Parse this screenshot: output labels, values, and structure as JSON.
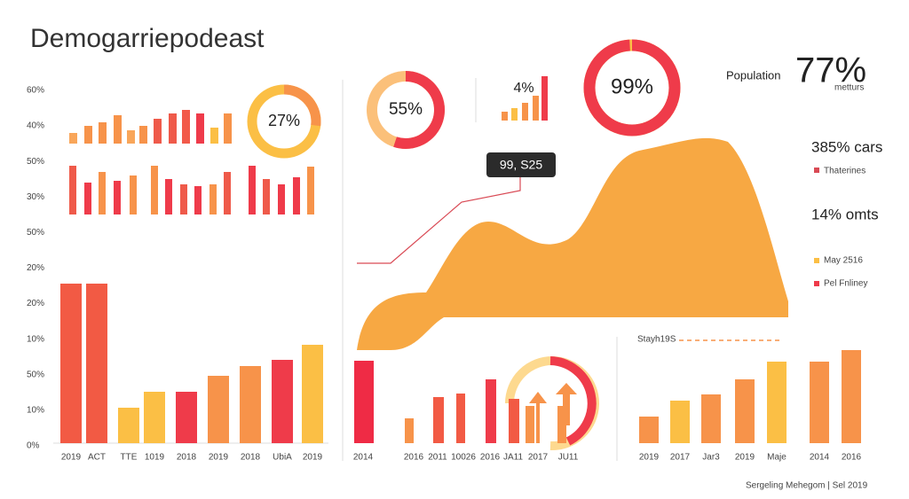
{
  "title": "Demogarriepodeast",
  "left_labels": [
    "60%",
    "40%",
    "50%",
    "30%",
    "50%",
    "20%",
    "20%",
    "10%",
    "50%",
    "10%",
    "0%"
  ],
  "tooltip": "99, S25",
  "population_label": "Population",
  "population_value": "77%",
  "population_sub": "metturs",
  "stat_cars": "385% cars",
  "legend_1": "Thaterines",
  "stat_omts": "14% omts",
  "legend_2": "May 2516",
  "legend_3": "Pel Fnliney",
  "marker_label": "Stayh19S",
  "footer": "Sergeling Mehegom  |  Sel 2019",
  "chart_data": [
    {
      "type": "bar",
      "values": [
        12,
        20,
        24,
        32,
        15,
        20,
        28,
        34,
        38,
        34,
        18,
        34
      ],
      "ylim": [
        0,
        200
      ],
      "colors": [
        "#f9a65a",
        "#f7934a",
        "#f7934a",
        "#f7934a",
        "#f9a65a",
        "#f7934a",
        "#ef5a4a",
        "#ef5a4a",
        "#f25a4a",
        "#ef3b4a",
        "#fbbf45",
        "#f7934a"
      ]
    },
    {
      "type": "bar",
      "values": [
        55,
        36,
        48,
        38,
        44,
        55,
        40,
        34,
        32,
        34,
        48,
        55,
        40,
        34,
        42,
        54
      ],
      "ylim": [
        0,
        200
      ],
      "colors": [
        "#ef5a4a",
        "#ef3b4a",
        "#f7934a",
        "#ef3b4a",
        "#f7934a",
        "#f7934a",
        "#ef3b4a",
        "#ef5a4a",
        "#ef3b4a",
        "#f7934a",
        "#ef5a4a",
        "#ef3b4a",
        "#ef5a4a",
        "#ef3b4a",
        "#ef3b4a",
        "#f7934a"
      ]
    },
    {
      "type": "bar",
      "categories": [
        "2019",
        "ACT",
        "TTE",
        "1019",
        "2018",
        "2019",
        "2018",
        "UbiA",
        "2019"
      ],
      "values": [
        180,
        180,
        40,
        58,
        58,
        76,
        87,
        94,
        111
      ],
      "ylim": [
        0,
        200
      ],
      "colors": [
        "#f25a44",
        "#f25a44",
        "#fbbf45",
        "#fbbf45",
        "#ef3b4a",
        "#f7934a",
        "#f7934a",
        "#ef3b4a",
        "#fbbf45"
      ]
    },
    {
      "type": "bar",
      "categories": [
        "2014",
        "2016",
        "2011",
        "10026",
        "2016",
        "JA11",
        "2017",
        "JU11"
      ],
      "values": [
        93,
        28,
        52,
        56,
        72,
        50,
        42,
        42
      ],
      "ylim": [
        0,
        200
      ],
      "colors": [
        "#ef2b45",
        "#f7934a",
        "#f25a44",
        "#f25a44",
        "#ef3b4a",
        "#f25a44",
        "#f7934a",
        "#f7934a"
      ]
    },
    {
      "type": "bar",
      "categories": [
        "2019",
        "2017",
        "Jar3",
        "2019",
        "Maje",
        "2014",
        "2016"
      ],
      "values": [
        30,
        48,
        55,
        72,
        92,
        92,
        105
      ],
      "ylim": [
        0,
        200
      ],
      "colors": [
        "#f7934a",
        "#fbbf45",
        "#f7934a",
        "#f7934a",
        "#fbbf45",
        "#f7934a",
        "#f7934a"
      ]
    },
    {
      "type": "bar",
      "title": "4%",
      "values": [
        10,
        14,
        20,
        28,
        50
      ],
      "ylim": [
        0,
        200
      ],
      "colors": [
        "#f7934a",
        "#fbbf45",
        "#f7934a",
        "#f7934a",
        "#ef3b4a"
      ]
    },
    {
      "type": "donut",
      "values": [
        27
      ],
      "value_labels": [
        "27%"
      ],
      "colors": [
        "#f7934a",
        "#fbbf45"
      ]
    },
    {
      "type": "donut",
      "values": [
        55
      ],
      "value_labels": [
        "55%"
      ],
      "colors": [
        "#ef3b4a",
        "#fbc07a"
      ]
    },
    {
      "type": "donut",
      "values": [
        99
      ],
      "value_labels": [
        "99%"
      ],
      "colors": [
        "#ef3b4a",
        "#fbbf45"
      ]
    }
  ]
}
